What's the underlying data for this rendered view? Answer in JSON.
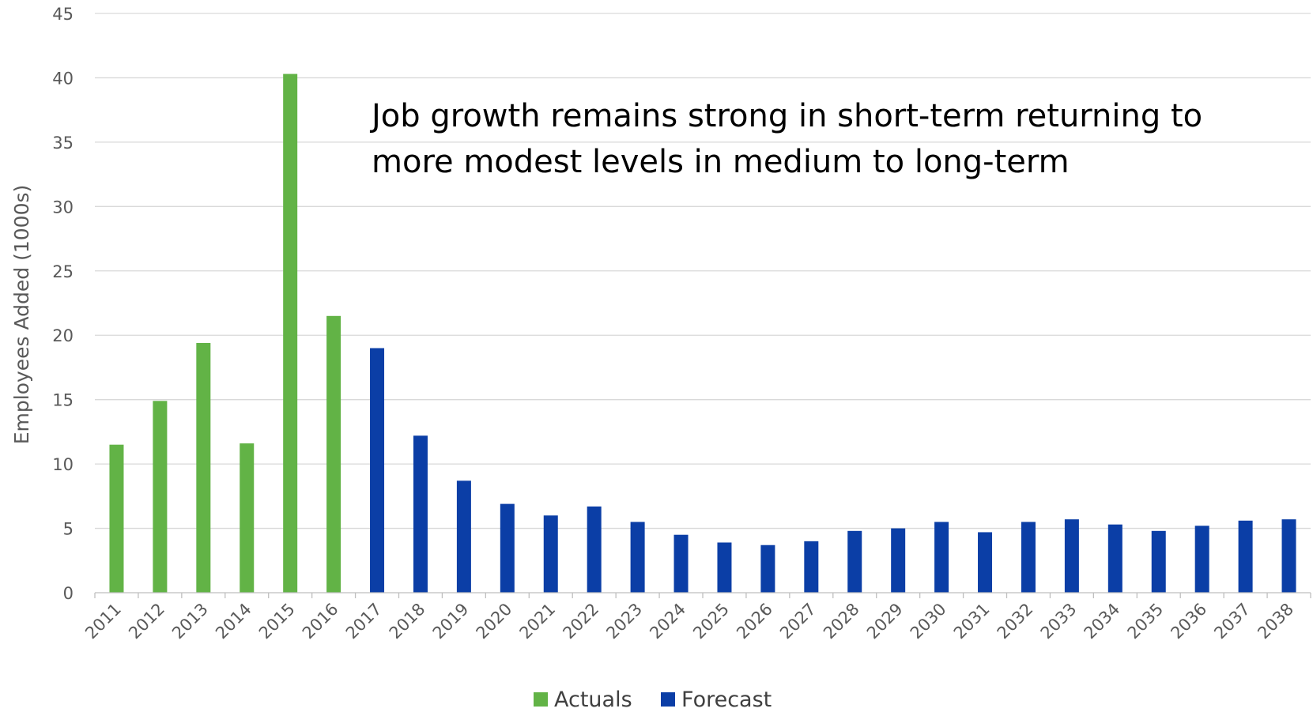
{
  "chart_data": {
    "type": "bar",
    "categories": [
      "2011",
      "2012",
      "2013",
      "2014",
      "2015",
      "2016",
      "2017",
      "2018",
      "2019",
      "2020",
      "2021",
      "2022",
      "2023",
      "2024",
      "2025",
      "2026",
      "2027",
      "2028",
      "2029",
      "2030",
      "2031",
      "2032",
      "2033",
      "2034",
      "2035",
      "2036",
      "2037",
      "2038"
    ],
    "values": [
      11.5,
      14.9,
      19.4,
      11.6,
      40.3,
      21.5,
      19.0,
      12.2,
      8.7,
      6.9,
      6.0,
      6.7,
      5.5,
      4.5,
      3.9,
      3.7,
      4.0,
      4.8,
      5.0,
      5.5,
      4.7,
      5.5,
      5.7,
      5.3,
      4.8,
      5.2,
      5.6,
      5.7
    ],
    "series_assignment": [
      "Actuals",
      "Actuals",
      "Actuals",
      "Actuals",
      "Actuals",
      "Actuals",
      "Forecast",
      "Forecast",
      "Forecast",
      "Forecast",
      "Forecast",
      "Forecast",
      "Forecast",
      "Forecast",
      "Forecast",
      "Forecast",
      "Forecast",
      "Forecast",
      "Forecast",
      "Forecast",
      "Forecast",
      "Forecast",
      "Forecast",
      "Forecast",
      "Forecast",
      "Forecast",
      "Forecast",
      "Forecast"
    ],
    "series": [
      {
        "name": "Actuals",
        "color": "#62b346"
      },
      {
        "name": "Forecast",
        "color": "#0b3ea6"
      }
    ],
    "title": "",
    "xlabel": "",
    "ylabel": "Employees Added (1000s)",
    "ylim": [
      0,
      45
    ],
    "yticks": [
      0,
      5,
      10,
      15,
      20,
      25,
      30,
      35,
      40,
      45
    ],
    "grid": true,
    "legend_position": "bottom",
    "annotation": {
      "line1": "Job growth remains strong in short-term returning to",
      "line2": "more modest levels in medium to long-term"
    }
  }
}
